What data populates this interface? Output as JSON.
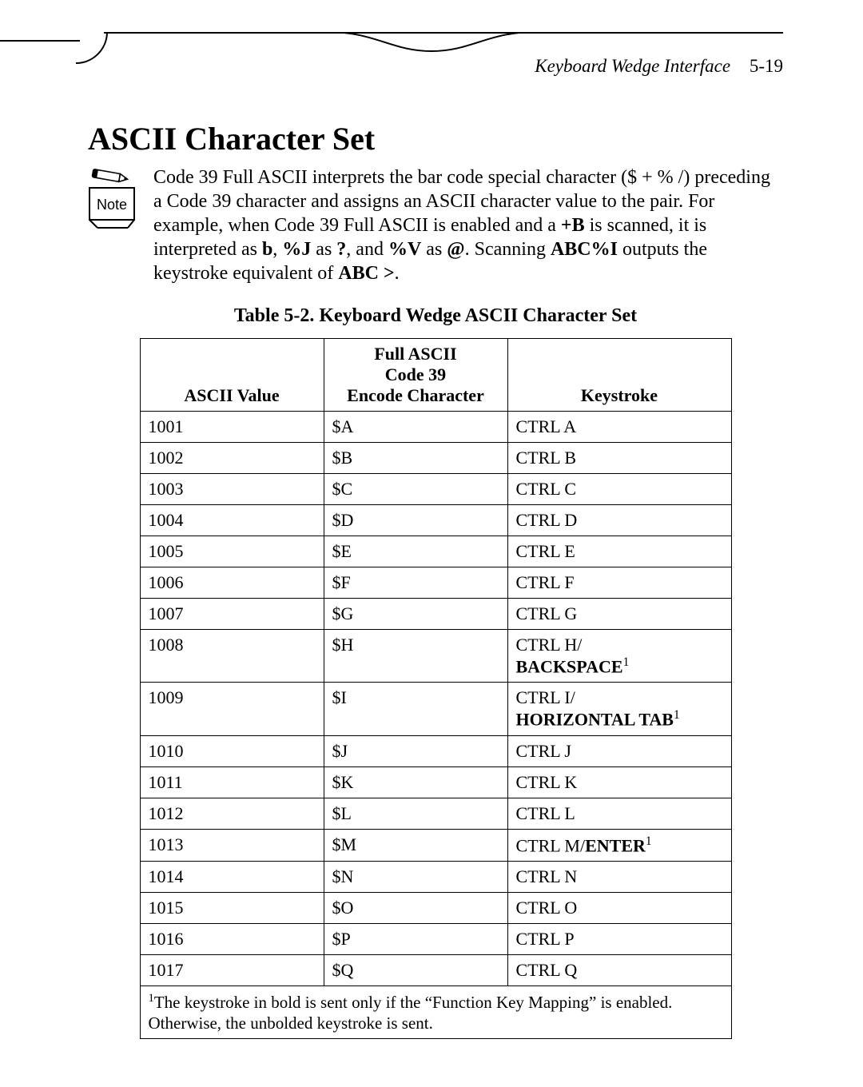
{
  "header": {
    "section": "Keyboard Wedge Interface",
    "page": "5-19"
  },
  "title": "ASCII Character Set",
  "note": {
    "label": "Note",
    "intro": "Code 39 Full ASCII interprets the bar code special character ($ + % /) preceding a Code 39 character and assigns an ASCII character value to the pair. For example, when Code 39 Full ASCII is enabled and a ",
    "b1": "+B",
    "mid1": " is scanned, it is interpreted as ",
    "b2": "b",
    "mid2": ", ",
    "b3": "%J",
    "mid3": " as ",
    "b4": "?",
    "mid4": ", and ",
    "b5": "%V",
    "mid5": " as ",
    "b6": "@",
    "mid6": ". Scanning ",
    "b7": "ABC%I",
    "mid7": " outputs the keystroke equivalent of ",
    "b8": "ABC >",
    "end": "."
  },
  "table": {
    "caption": "Table 5-2. Keyboard Wedge ASCII Character Set",
    "headers": {
      "c1": "ASCII Value",
      "c2_l1": "Full ASCII",
      "c2_l2": "Code 39",
      "c2_l3": "Encode Character",
      "c3": "Keystroke"
    },
    "rows": [
      {
        "v": "1001",
        "e": "$A",
        "k": "CTRL A"
      },
      {
        "v": "1002",
        "e": "$B",
        "k": "CTRL B"
      },
      {
        "v": "1003",
        "e": "$C",
        "k": "CTRL C"
      },
      {
        "v": "1004",
        "e": "$D",
        "k": "CTRL D"
      },
      {
        "v": "1005",
        "e": "$E",
        "k": "CTRL E"
      },
      {
        "v": "1006",
        "e": "$F",
        "k": "CTRL F"
      },
      {
        "v": "1007",
        "e": "$G",
        "k": "CTRL G"
      },
      {
        "v": "1008",
        "e": "$H",
        "k": "CTRL H/",
        "kb": "BACKSPACE",
        "sup": "1"
      },
      {
        "v": "1009",
        "e": "$I",
        "k": "CTRL I/",
        "kb": "HORIZONTAL TAB",
        "sup": "1"
      },
      {
        "v": "1010",
        "e": "$J",
        "k": "CTRL J"
      },
      {
        "v": "1011",
        "e": "$K",
        "k": "CTRL K"
      },
      {
        "v": "1012",
        "e": "$L",
        "k": "CTRL L"
      },
      {
        "v": "1013",
        "e": "$M",
        "k": "CTRL M/",
        "kb_inline": "ENTER",
        "sup": "1"
      },
      {
        "v": "1014",
        "e": "$N",
        "k": "CTRL N"
      },
      {
        "v": "1015",
        "e": "$O",
        "k": "CTRL O"
      },
      {
        "v": "1016",
        "e": "$P",
        "k": "CTRL P"
      },
      {
        "v": "1017",
        "e": "$Q",
        "k": "CTRL Q"
      }
    ],
    "footnote_sup": "1",
    "footnote": "The keystroke in bold is sent only if the “Function Key Mapping” is enabled. Otherwise, the unbolded keystroke is sent."
  }
}
